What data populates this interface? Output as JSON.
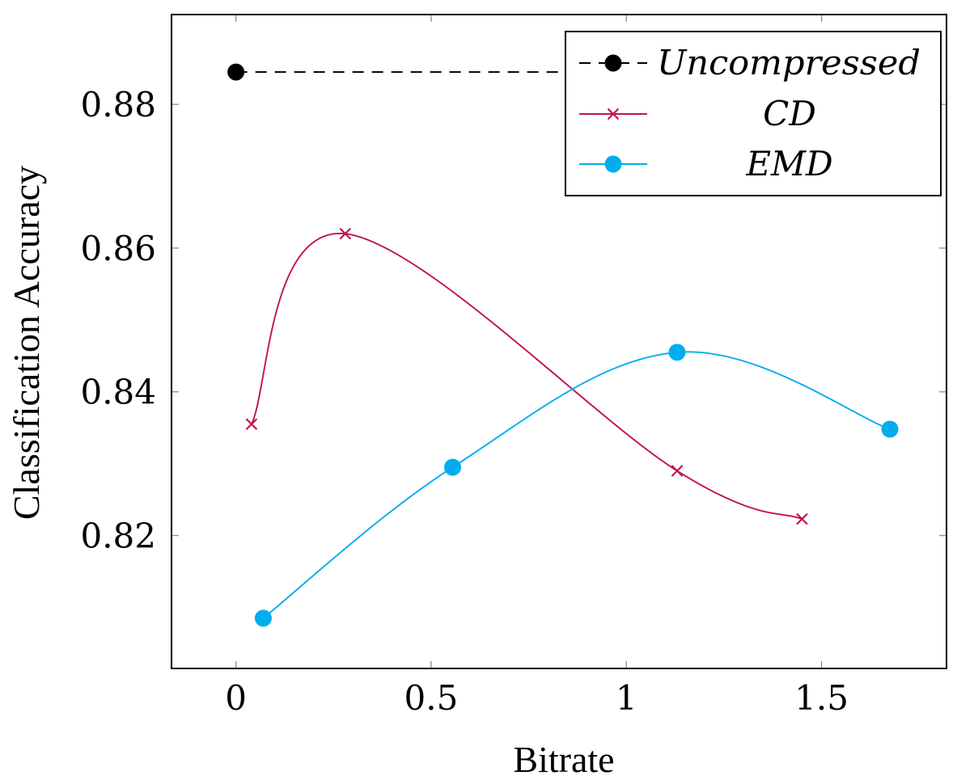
{
  "chart_data": {
    "type": "line",
    "title": "",
    "xlabel": "Bitrate",
    "ylabel": "Classification Accuracy",
    "xlim": [
      -0.165,
      1.82
    ],
    "ylim": [
      0.8015,
      0.8925
    ],
    "xticks": [
      0,
      0.5,
      1,
      1.5
    ],
    "xtick_labels": [
      "0",
      "0.5",
      "1",
      "1.5"
    ],
    "yticks": [
      0.82,
      0.84,
      0.86,
      0.88
    ],
    "ytick_labels": [
      "0.82",
      "0.84",
      "0.86",
      "0.88"
    ],
    "grid": false,
    "legend_position": "top-right",
    "series": [
      {
        "name": "Uncompressed",
        "style": "dashed",
        "marker": "circle",
        "color": "#000000",
        "x": [
          0,
          1.8
        ],
        "y": [
          0.8845,
          0.8845
        ],
        "marked": [
          true,
          false
        ]
      },
      {
        "name": "CD",
        "style": "smooth",
        "marker": "x",
        "color": "#c0134e",
        "x": [
          0.04,
          0.28,
          1.13,
          1.45
        ],
        "y": [
          0.8355,
          0.862,
          0.829,
          0.8223
        ],
        "marked": [
          true,
          true,
          true,
          true
        ]
      },
      {
        "name": "EMD",
        "style": "smooth",
        "marker": "circle",
        "color": "#00adee",
        "x": [
          0.07,
          0.555,
          1.13,
          1.675
        ],
        "y": [
          0.8085,
          0.8295,
          0.8455,
          0.8348
        ],
        "marked": [
          true,
          true,
          true,
          true
        ]
      }
    ]
  }
}
